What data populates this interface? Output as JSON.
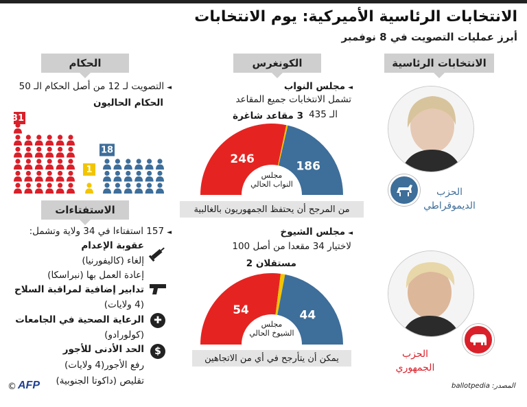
{
  "header": {
    "title": "الانتخابات الرئاسية الأميركية: يوم الانتخابات",
    "subtitle": "أبرز عمليات التصويت في 8 نوفمبر"
  },
  "tabs": {
    "presidential": "الانتخابات الرئاسية",
    "congress": "الكونغرس",
    "governors": "الحكام",
    "referendums": "الاستفتاءات"
  },
  "presidential": {
    "democrat": {
      "line1": "الحزب",
      "line2": "الديموقراطي",
      "color": "#3e6e9a"
    },
    "republican": {
      "line1": "الحزب",
      "line2": "الجمهوري",
      "color": "#d9202a"
    }
  },
  "house": {
    "title": "مجلس النواب",
    "desc": "تشمل الانتخابات جميع المقاعد",
    "total": "الـ 435",
    "vacant": "3 مقاعد شاغرة",
    "center_line1": "مجلس",
    "center_line2": "النواب الحالي",
    "banner": "من المرجح أن يحتفظ الجمهوريون بالغالبية",
    "republican_seats": 246,
    "democrat_seats": 186,
    "vacant_seats": 3
  },
  "senate": {
    "title": "مجلس الشيوخ",
    "desc": "لاختيار 34 مقعدا من أصل 100",
    "independents": "مستقلان  2",
    "center_line1": "مجلس",
    "center_line2": "الشيوخ الحالي",
    "banner": "يمكن أن يتأرجح في أي من الاتجاهين",
    "republican_seats": 54,
    "democrat_seats": 44,
    "independent_seats": 2
  },
  "governors": {
    "line1": "التصويت لـ 12 من أصل الحكام الـ 50",
    "line2": "الحكام الحاليون",
    "republican": 31,
    "democrat": 18,
    "independent": 1,
    "colors": {
      "republican": "#d9202a",
      "democrat": "#3e6e9a",
      "independent": "#f2c500"
    }
  },
  "referendums": {
    "intro": "157 استفتاءا في 34 ولاية وتشمل:",
    "items": [
      {
        "title": "عقوبة الإعدام",
        "lines": [
          "إلغاء (كاليفورنيا)",
          "إعادة العمل بها (نبراسكا)"
        ],
        "icon": "syringe-icon"
      },
      {
        "title": "تدابير إضافية لمراقبة السلاح",
        "lines": [
          "(4 ولايات)"
        ],
        "icon": "pistol-icon"
      },
      {
        "title": "الرعاية الصحية في الجامعات",
        "lines": [
          "(كولورادو)"
        ],
        "icon": "medical-cross-icon"
      },
      {
        "title": "الحد الأدنى للأجور",
        "lines": [
          "رفع الأجور(4 ولايات)",
          "تقليص (داكوتا الجنوبية)"
        ],
        "icon": "dollar-icon"
      }
    ]
  },
  "footer": {
    "source": "المصدر: ballotpedia",
    "logo": "AFP",
    "copyright": "©"
  }
}
